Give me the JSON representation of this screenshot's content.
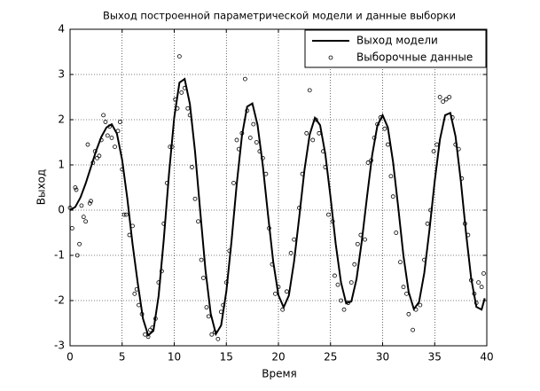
{
  "chart_data": {
    "type": "line",
    "title": "Выход построенной параметрической модели и данные выборки",
    "xlabel": "Время",
    "ylabel": "Выход",
    "xlim": [
      0,
      40
    ],
    "ylim": [
      -3,
      4
    ],
    "xticks": [
      0,
      5,
      10,
      15,
      20,
      25,
      30,
      35,
      40
    ],
    "yticks": [
      -3,
      -2,
      -1,
      0,
      1,
      2,
      3,
      4
    ],
    "grid": true,
    "legend": "upper right",
    "series": [
      {
        "name": "Выход модели",
        "type": "line",
        "color": "#000000",
        "x": [
          0,
          0.5,
          1,
          1.5,
          2,
          2.5,
          3,
          3.5,
          4,
          4.5,
          5,
          5.5,
          6,
          6.5,
          7,
          7.5,
          8,
          8.5,
          9,
          9.5,
          10,
          10.5,
          11,
          11.5,
          12,
          12.5,
          13,
          13.5,
          14,
          14.5,
          15,
          15.5,
          16,
          16.5,
          17,
          17.5,
          18,
          18.5,
          19,
          19.5,
          20,
          20.5,
          21,
          21.5,
          22,
          22.5,
          23,
          23.5,
          24,
          24.5,
          25,
          25.5,
          26,
          26.5,
          27,
          27.5,
          28,
          28.5,
          29,
          29.5,
          30,
          30.5,
          31,
          31.5,
          32,
          32.5,
          33,
          33.5,
          34,
          34.5,
          35,
          35.5,
          36,
          36.5,
          37,
          37.5,
          38,
          38.5,
          39,
          39.5,
          39.8
        ],
        "values": [
          0,
          0.07,
          0.28,
          0.59,
          0.95,
          1.31,
          1.62,
          1.83,
          1.9,
          1.69,
          1.11,
          0.25,
          -0.75,
          -1.62,
          -2.4,
          -2.77,
          -2.67,
          -1.9,
          -0.64,
          0.81,
          2.05,
          2.82,
          2.9,
          2.35,
          1.29,
          -0.04,
          -1.33,
          -2.29,
          -2.74,
          -2.55,
          -1.8,
          -0.68,
          0.58,
          1.65,
          2.29,
          2.36,
          1.88,
          0.99,
          -0.1,
          -1.14,
          -1.88,
          -2.15,
          -1.89,
          -1.14,
          -0.15,
          0.89,
          1.67,
          2.04,
          1.88,
          1.24,
          0.29,
          -0.75,
          -1.59,
          -2.06,
          -2.02,
          -1.52,
          -0.69,
          0.29,
          1.22,
          1.87,
          2.1,
          1.83,
          1.07,
          0.06,
          -1.01,
          -1.81,
          -2.19,
          -2.03,
          -1.39,
          -0.43,
          0.64,
          1.56,
          2.1,
          2.15,
          1.63,
          0.66,
          -0.49,
          -1.51,
          -2.14,
          -2.2,
          -1.95
        ]
      },
      {
        "name": "Выборочные данные",
        "type": "scatter",
        "color": "#000000",
        "x": [
          0,
          0.2,
          0.5,
          0.6,
          0.7,
          0.9,
          1.1,
          1.3,
          1.5,
          1.7,
          1.9,
          2.0,
          2.2,
          2.4,
          2.6,
          2.8,
          3.0,
          3.2,
          3.4,
          3.6,
          3.8,
          4.0,
          4.3,
          4.6,
          4.8,
          5.0,
          5.2,
          5.4,
          5.7,
          6.0,
          6.2,
          6.4,
          6.6,
          6.9,
          7.2,
          7.5,
          7.7,
          7.9,
          8.2,
          8.5,
          8.8,
          9.0,
          9.3,
          9.6,
          9.8,
          10.1,
          10.3,
          10.5,
          10.7,
          11.0,
          11.3,
          11.5,
          11.7,
          12.0,
          12.3,
          12.6,
          12.8,
          13.1,
          13.3,
          13.6,
          13.9,
          14.2,
          14.5,
          14.7,
          15.0,
          15.3,
          15.7,
          16.0,
          16.2,
          16.5,
          16.8,
          17.0,
          17.3,
          17.6,
          17.9,
          18.2,
          18.5,
          18.8,
          19.1,
          19.4,
          19.7,
          20.0,
          20.4,
          20.8,
          21.2,
          21.5,
          22.0,
          22.3,
          22.7,
          23.0,
          23.3,
          23.6,
          23.9,
          24.3,
          24.5,
          24.8,
          25.2,
          25.4,
          25.7,
          26.0,
          26.3,
          26.7,
          27.0,
          27.3,
          27.6,
          27.9,
          28.3,
          28.6,
          28.9,
          29.2,
          29.5,
          29.8,
          30.2,
          30.5,
          30.8,
          31.0,
          31.3,
          31.7,
          32.0,
          32.3,
          32.5,
          32.9,
          33.2,
          33.6,
          34.0,
          34.3,
          34.6,
          34.9,
          35.2,
          35.5,
          35.8,
          36.1,
          36.4,
          36.7,
          37.0,
          37.3,
          37.6,
          37.9,
          38.2,
          38.5,
          38.8,
          39.0,
          39.2,
          39.5,
          39.7
        ],
        "values": [
          0.05,
          -0.4,
          0.5,
          0.45,
          -1.0,
          -0.75,
          0.1,
          -0.15,
          -0.25,
          1.45,
          0.15,
          0.2,
          1.05,
          1.3,
          1.15,
          1.2,
          1.55,
          2.1,
          1.95,
          1.65,
          1.85,
          1.6,
          1.4,
          1.75,
          1.95,
          0.9,
          -0.1,
          -0.1,
          -0.55,
          -0.35,
          -1.85,
          -1.75,
          -2.1,
          -2.3,
          -2.75,
          -2.8,
          -2.65,
          -2.6,
          -2.4,
          -1.6,
          -1.35,
          -0.3,
          0.6,
          1.4,
          1.4,
          2.45,
          2.25,
          3.4,
          2.6,
          2.7,
          2.25,
          2.1,
          0.95,
          0.25,
          -0.25,
          -1.1,
          -1.5,
          -2.15,
          -2.35,
          -2.75,
          -2.7,
          -2.85,
          -2.25,
          -2.1,
          -1.6,
          -0.9,
          0.6,
          1.55,
          1.35,
          1.7,
          2.9,
          2.2,
          1.6,
          1.9,
          1.5,
          1.3,
          1.15,
          0.8,
          -0.4,
          -1.2,
          -1.85,
          -1.7,
          -2.2,
          -1.8,
          -0.95,
          -0.65,
          0.05,
          0.8,
          1.7,
          2.65,
          1.55,
          2.0,
          1.7,
          1.3,
          0.95,
          -0.1,
          -0.25,
          -1.45,
          -1.65,
          -2.0,
          -2.2,
          -2.05,
          -1.6,
          -1.2,
          -0.75,
          -0.55,
          -0.65,
          1.05,
          1.1,
          1.6,
          1.9,
          2.05,
          1.8,
          1.45,
          0.75,
          0.3,
          -0.5,
          -1.15,
          -1.7,
          -1.85,
          -2.3,
          -2.65,
          -2.2,
          -2.1,
          -1.1,
          -0.3,
          0.0,
          1.3,
          1.45,
          2.5,
          2.4,
          2.45,
          2.5,
          2.05,
          1.45,
          1.35,
          0.7,
          -0.3,
          -0.55,
          -1.55,
          -1.85,
          -2.05,
          -1.6,
          -1.7,
          -1.4
        ]
      }
    ]
  }
}
